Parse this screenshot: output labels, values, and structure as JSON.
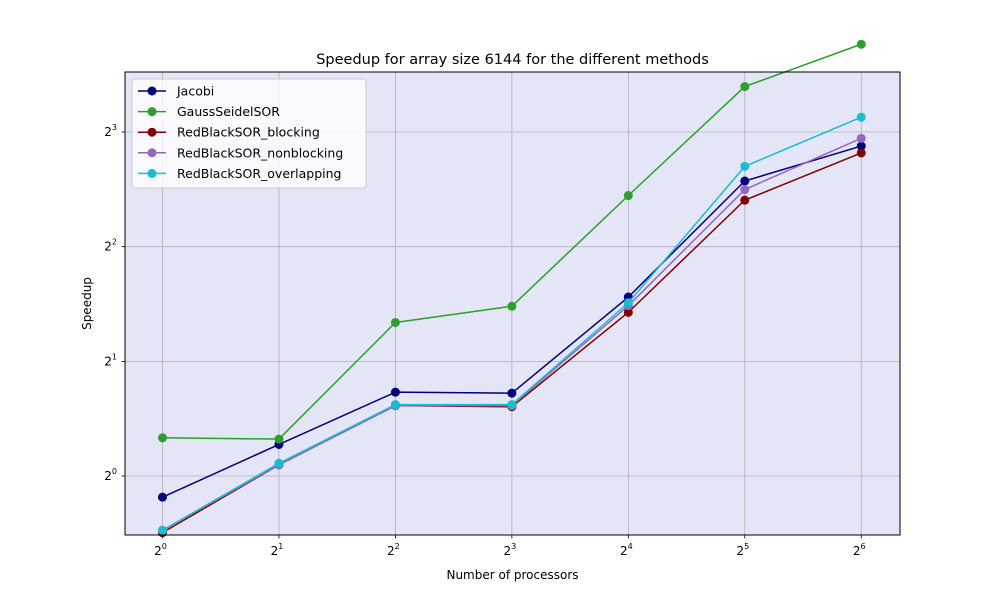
{
  "chart_data": {
    "type": "line",
    "title": "Speedup for array size 6144 for the different methods",
    "xlabel": "Number of processors",
    "ylabel": "Speedup",
    "xscale": "log2",
    "yscale": "log2",
    "xlim": [
      0.8,
      80.6
    ],
    "ylim": [
      0.7,
      11.5
    ],
    "x": [
      1,
      2,
      4,
      8,
      16,
      32,
      64
    ],
    "xticks": [
      {
        "value": 1,
        "base": "2",
        "exp": "0"
      },
      {
        "value": 2,
        "base": "2",
        "exp": "1"
      },
      {
        "value": 4,
        "base": "2",
        "exp": "2"
      },
      {
        "value": 8,
        "base": "2",
        "exp": "3"
      },
      {
        "value": 16,
        "base": "2",
        "exp": "4"
      },
      {
        "value": 32,
        "base": "2",
        "exp": "5"
      },
      {
        "value": 64,
        "base": "2",
        "exp": "6"
      }
    ],
    "yticks": [
      {
        "value": 1,
        "base": "2",
        "exp": "0"
      },
      {
        "value": 2,
        "base": "2",
        "exp": "1"
      },
      {
        "value": 4,
        "base": "2",
        "exp": "2"
      },
      {
        "value": 8,
        "base": "2",
        "exp": "3"
      }
    ],
    "grid": true,
    "background": "#e5e5f8",
    "legend_position": "upper left",
    "series": [
      {
        "name": "Jacobi",
        "color": "#00007f",
        "values": [
          0.88,
          1.21,
          1.66,
          1.65,
          2.95,
          5.95,
          7.35
        ]
      },
      {
        "name": "GaussSeidelSOR",
        "color": "#2ca02c",
        "values": [
          1.26,
          1.25,
          2.53,
          2.79,
          5.45,
          10.53,
          13.6
        ]
      },
      {
        "name": "RedBlackSOR_blocking",
        "color": "#800000",
        "values": [
          0.71,
          1.07,
          1.53,
          1.52,
          2.69,
          5.3,
          7.05
        ]
      },
      {
        "name": "RedBlackSOR_nonblocking",
        "color": "#9467bd",
        "values": [
          0.72,
          1.07,
          1.53,
          1.53,
          2.8,
          5.65,
          7.7
        ]
      },
      {
        "name": "RedBlackSOR_overlapping",
        "color": "#17becf",
        "values": [
          0.72,
          1.08,
          1.54,
          1.54,
          2.85,
          6.5,
          8.75
        ]
      }
    ]
  }
}
